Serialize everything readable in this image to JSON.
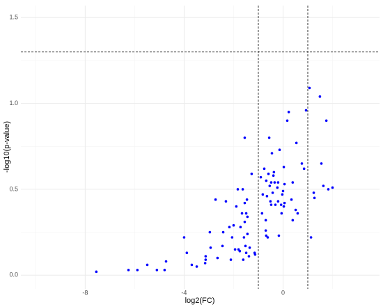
{
  "chart_data": {
    "type": "scatter",
    "x_label": "log2(FC)",
    "y_label": "-log10(p-value)",
    "xlim": [
      -10.6,
      3.9
    ],
    "ylim": [
      -0.08,
      1.57
    ],
    "xticks": [
      -8,
      -4,
      0
    ],
    "yticks": [
      {
        "value": 0,
        "label": "0.0"
      },
      0.5,
      {
        "value": 1,
        "label": "1.0"
      },
      1.5
    ],
    "minor_xticks": [
      -10,
      -6,
      -2,
      2
    ],
    "minor_yticks": [
      0.25,
      0.75,
      1.25
    ],
    "grid": true,
    "threshold_x": [
      -1,
      1
    ],
    "threshold_y": 1.3,
    "series": [
      {
        "color": "#0000ff",
        "x": [
          -7.55,
          -6.25,
          -5.89,
          -5.49,
          -5.1,
          -4.79,
          -4.73,
          -4.0,
          -3.89,
          -3.69,
          -3.49,
          -3.15,
          -3.13,
          -3.13,
          -2.96,
          -2.93,
          -2.73,
          -2.65,
          -2.45,
          -2.42,
          -2.31,
          -2.17,
          -2.11,
          -2.06,
          -2.0,
          -1.94,
          -1.89,
          -1.83,
          -1.8,
          -1.75,
          -1.72,
          -1.66,
          -1.63,
          -1.61,
          -1.58,
          -1.55,
          -1.55,
          -1.55,
          -1.52,
          -1.49,
          -1.49,
          -1.46,
          -1.44,
          -1.44,
          -1.38,
          -1.35,
          -1.27,
          -1.15,
          -1.13,
          -0.9,
          -0.85,
          -0.82,
          -0.76,
          -0.7,
          -0.7,
          -0.68,
          -0.68,
          -0.65,
          -0.62,
          -0.59,
          -0.56,
          -0.54,
          -0.51,
          -0.48,
          -0.48,
          -0.45,
          -0.42,
          -0.39,
          -0.37,
          -0.34,
          -0.31,
          -0.23,
          -0.2,
          -0.2,
          -0.17,
          -0.14,
          -0.08,
          -0.06,
          -0.03,
          0.0,
          0.03,
          0.03,
          0.06,
          0.06,
          0.17,
          0.23,
          0.34,
          0.39,
          0.39,
          0.51,
          0.54,
          0.59,
          0.76,
          0.85,
          0.93,
          1.07,
          1.13,
          1.24,
          1.27,
          1.49,
          1.55,
          1.63,
          1.75,
          1.83,
          2.0
        ],
        "values": [
          0.02,
          0.03,
          0.03,
          0.06,
          0.03,
          0.03,
          0.08,
          0.22,
          0.13,
          0.06,
          0.05,
          0.07,
          0.09,
          0.11,
          0.25,
          0.16,
          0.44,
          0.1,
          0.17,
          0.25,
          0.43,
          0.28,
          0.09,
          0.22,
          0.29,
          0.15,
          0.4,
          0.5,
          0.15,
          0.14,
          0.28,
          0.36,
          0.5,
          0.09,
          0.22,
          0.31,
          0.8,
          0.42,
          0.17,
          0.13,
          0.36,
          0.44,
          0.34,
          0.24,
          0.11,
          0.16,
          0.59,
          0.13,
          0.12,
          0.57,
          0.36,
          0.47,
          0.62,
          0.32,
          0.26,
          0.55,
          0.23,
          0.46,
          0.22,
          0.59,
          0.8,
          0.52,
          0.43,
          0.54,
          0.41,
          0.71,
          0.48,
          0.58,
          0.6,
          0.54,
          0.41,
          0.51,
          0.54,
          0.43,
          0.23,
          0.73,
          0.41,
          0.36,
          0.47,
          0.49,
          0.4,
          0.63,
          0.53,
          0.42,
          0.9,
          0.95,
          0.44,
          0.54,
          0.32,
          0.38,
          0.77,
          0.36,
          0.65,
          0.62,
          0.96,
          1.09,
          0.22,
          0.48,
          0.45,
          1.04,
          0.65,
          0.52,
          0.9,
          0.5,
          0.51
        ]
      }
    ]
  }
}
